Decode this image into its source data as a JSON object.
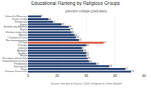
{
  "chart_data": {
    "type": "bar",
    "orientation": "horizontal",
    "title": "Educational Ranking by Religious Groups",
    "subtitle": "(percent college graduates)",
    "annotations": [
      "Source: Kosmin & Keysar, 2009, Religion in a Free Market"
    ],
    "categories": [
      "Jehovah's Witnesses",
      "Church of God",
      "Pentecostal",
      "Baptist",
      "Seventh-day Adventist",
      "Baptist",
      "Christian unspecified",
      "Mormon",
      "Churches of Christ",
      "Non-denominational",
      "US Total",
      "Orthodox",
      "Lutheran",
      "Methodist",
      "Buddhist",
      "Muslim",
      "No religion without God",
      "United Church of Christ",
      "Presbyterian",
      "Episcopalian",
      "Hindu",
      "Unitarian Universalist"
    ],
    "values": [
      9,
      14,
      17,
      23,
      28,
      29,
      30,
      32,
      33,
      35,
      52,
      40,
      37,
      38,
      40,
      40,
      41,
      42,
      47,
      56,
      67,
      71
    ],
    "colors": [
      "#1c3a6e",
      "#1c3a6e",
      "#1c3a6e",
      "#1c3a6e",
      "#1c3a6e",
      "#1c3a6e",
      "#1c3a6e",
      "#1c3a6e",
      "#1c3a6e",
      "#1c3a6e",
      "#d94f2b",
      "#1c3a6e",
      "#1c3a6e",
      "#1c3a6e",
      "#1c3a6e",
      "#1c3a6e",
      "#1c3a6e",
      "#1c3a6e",
      "#1c3a6e",
      "#1c3a6e",
      "#1c3a6e",
      "#1c3a6e"
    ],
    "xlim": [
      0,
      80
    ],
    "xticks": [
      0,
      20,
      40,
      60,
      80
    ],
    "grid": true,
    "data_labels": true
  }
}
